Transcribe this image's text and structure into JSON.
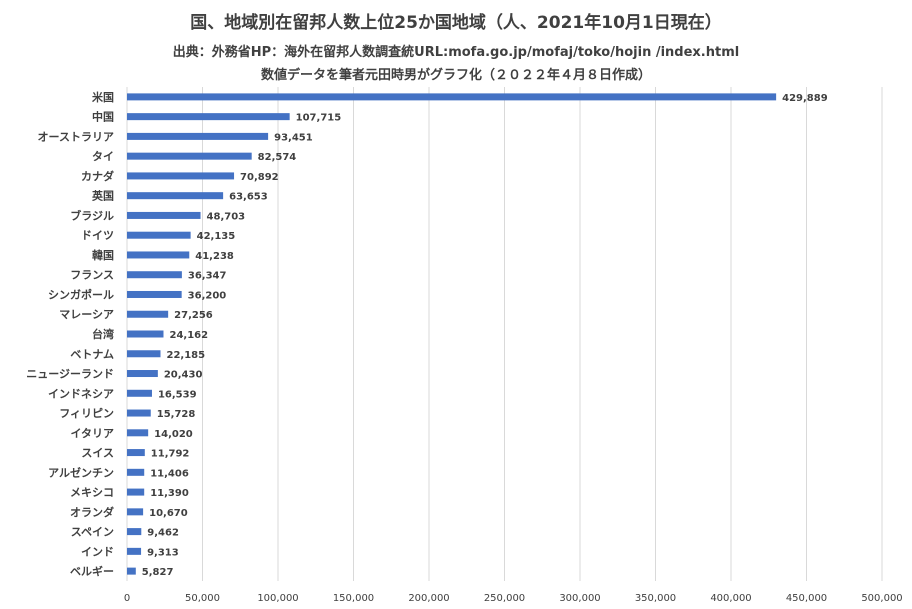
{
  "title": "国、地域別在留邦人数上位25か国地域（人、2021年10月1日現在）",
  "subtitle_source": "出典：外務省HP：海外在留邦人数調査統URL:mofa.go.jp/mofaj/toko/hojin /index.html",
  "subtitle_author": "数値データを筆者元田時男がグラフ化（２０２２年４月８日作成）",
  "colors": {
    "bar": "#4472C4",
    "grid": "#d9d9d9",
    "text": "#404040"
  },
  "chart_data": {
    "type": "bar",
    "orientation": "horizontal",
    "categories": [
      "米国",
      "中国",
      "オーストラリア",
      "タイ",
      "カナダ",
      "英国",
      "ブラジル",
      "ドイツ",
      "韓国",
      "フランス",
      "シンガポール",
      "マレーシア",
      "台湾",
      "ベトナム",
      "ニュージーランド",
      "インドネシア",
      "フィリピン",
      "イタリア",
      "スイス",
      "アルゼンチン",
      "メキシコ",
      "オランダ",
      "スペイン",
      "インド",
      "ベルギー"
    ],
    "values": [
      429889,
      107715,
      93451,
      82574,
      70892,
      63653,
      48703,
      42135,
      41238,
      36347,
      36200,
      27256,
      24162,
      22185,
      20430,
      16539,
      15728,
      14020,
      11792,
      11406,
      11390,
      10670,
      9462,
      9313,
      5827
    ],
    "value_labels": [
      "429,889",
      "107,715",
      "93,451",
      "82,574",
      "70,892",
      "63,653",
      "48,703",
      "42,135",
      "41,238",
      "36,347",
      "36,200",
      "27,256",
      "24,162",
      "22,185",
      "20,430",
      "16,539",
      "15,728",
      "14,020",
      "11,792",
      "11,406",
      "11,390",
      "10,670",
      "9,462",
      "9,313",
      "5,827"
    ],
    "xlim": [
      0,
      500000
    ],
    "xticks": [
      0,
      50000,
      100000,
      150000,
      200000,
      250000,
      300000,
      350000,
      400000,
      450000,
      500000
    ],
    "xtick_labels": [
      "0",
      "50,000",
      "100,000",
      "150,000",
      "200,000",
      "250,000",
      "300,000",
      "350,000",
      "400,000",
      "450,000",
      "500,000"
    ],
    "grid": true,
    "legend": "none"
  }
}
